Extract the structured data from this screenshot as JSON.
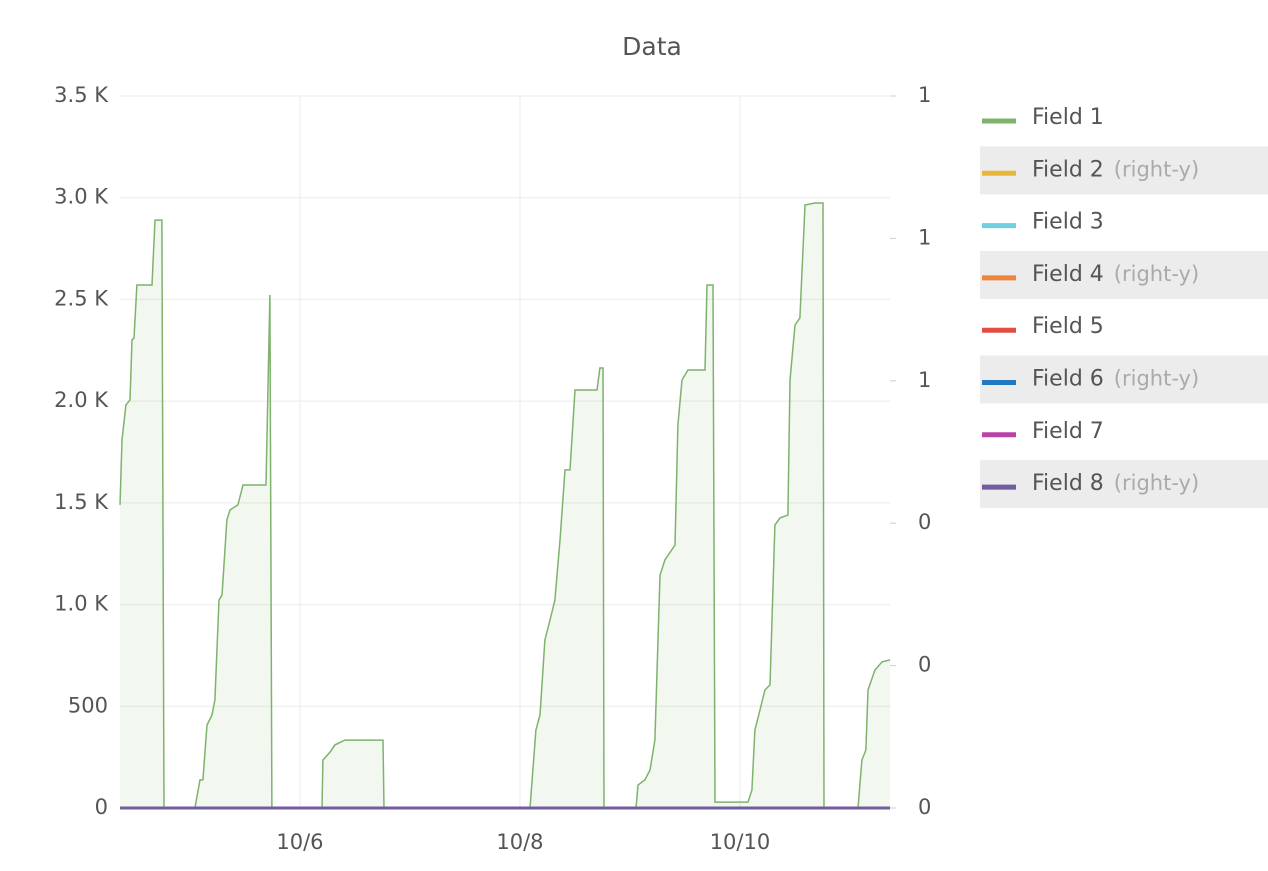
{
  "chart_data": {
    "type": "line",
    "title": "Data",
    "xlim": [
      4.364,
      11.364
    ],
    "xticks": [
      {
        "value": 6,
        "label": "10/6"
      },
      {
        "value": 8,
        "label": "10/8"
      },
      {
        "value": 10,
        "label": "10/10"
      }
    ],
    "ylim": [
      0,
      3500
    ],
    "yticks": [
      0,
      500,
      {
        "value": 1000,
        "label": "1.0 K"
      },
      {
        "value": 1500,
        "label": "1.5 K"
      },
      {
        "value": 2000,
        "label": "2.0 K"
      },
      {
        "value": 2500,
        "label": "2.5 K"
      },
      {
        "value": 3000,
        "label": "3.0 K"
      },
      {
        "value": 3500,
        "label": "3.5 K"
      }
    ],
    "y2lim": [
      0,
      1
    ],
    "y2ticks": [
      0,
      {
        "value": 0.2,
        "label": "0"
      },
      {
        "value": 0.4,
        "label": "0"
      },
      {
        "value": 0.6,
        "label": "1"
      },
      {
        "value": 0.8,
        "label": "1"
      },
      1
    ],
    "grid": true,
    "legend": "right",
    "right_axis_suffix": "(right-y)",
    "series": [
      {
        "name": "Field 1",
        "color": "#7eb26d",
        "fill": true,
        "x": [
          4.364,
          4.382,
          4.418,
          4.455,
          4.473,
          4.491,
          4.518,
          4.655,
          4.682,
          4.745,
          4.764,
          5.045,
          5.091,
          5.118,
          5.155,
          5.2,
          5.227,
          5.264,
          5.291,
          5.336,
          5.364,
          5.436,
          5.482,
          5.691,
          5.727,
          5.745,
          6.2,
          6.209,
          6.273,
          6.318,
          6.409,
          6.755,
          6.764,
          8.091,
          8.145,
          8.182,
          8.227,
          8.273,
          8.318,
          8.364,
          8.409,
          8.455,
          8.5,
          8.7,
          8.727,
          8.755,
          8.764,
          9.055,
          9.073,
          9.136,
          9.182,
          9.227,
          9.273,
          9.318,
          9.409,
          9.436,
          9.473,
          9.527,
          9.682,
          9.7,
          9.755,
          9.773,
          10.073,
          10.109,
          10.136,
          10.182,
          10.227,
          10.273,
          10.318,
          10.364,
          10.436,
          10.455,
          10.5,
          10.545,
          10.591,
          10.682,
          10.755,
          10.764,
          11.073,
          11.109,
          11.145,
          11.164,
          11.227,
          11.291,
          11.364
        ],
        "values": [
          1490,
          1809,
          1981,
          2006,
          2301,
          2310,
          2571,
          2571,
          2890,
          2890,
          0,
          0,
          138,
          138,
          408,
          457,
          531,
          1022,
          1047,
          1416,
          1465,
          1490,
          1588,
          1588,
          2522,
          0,
          0,
          236,
          275,
          310,
          334,
          334,
          0,
          0,
          383,
          457,
          826,
          924,
          1022,
          1317,
          1662,
          1662,
          2055,
          2055,
          2163,
          2163,
          0,
          0,
          113,
          138,
          187,
          334,
          1145,
          1219,
          1293,
          1883,
          2104,
          2153,
          2153,
          2571,
          2571,
          29,
          29,
          88,
          383,
          482,
          580,
          605,
          1391,
          1426,
          1440,
          2104,
          2374,
          2409,
          2964,
          2974,
          2974,
          0,
          0,
          236,
          285,
          580,
          678,
          718,
          728
        ]
      },
      {
        "name": "Field 2",
        "color": "#eab839",
        "axis": "y2",
        "x": [
          4.364,
          11.364
        ],
        "values": [
          0,
          0
        ]
      },
      {
        "name": "Field 3",
        "color": "#6ed0e0",
        "x": [
          4.364,
          11.364
        ],
        "values": [
          0,
          0
        ]
      },
      {
        "name": "Field 4",
        "color": "#ef843c",
        "axis": "y2",
        "x": [
          4.364,
          11.364
        ],
        "values": [
          0,
          0
        ]
      },
      {
        "name": "Field 5",
        "color": "#e24d42",
        "x": [
          4.364,
          11.364
        ],
        "values": [
          0,
          0
        ]
      },
      {
        "name": "Field 6",
        "color": "#1f78c1",
        "axis": "y2",
        "x": [
          4.364,
          11.364
        ],
        "values": [
          0,
          0
        ]
      },
      {
        "name": "Field 7",
        "color": "#ba43a9",
        "x": [
          4.364,
          11.364
        ],
        "values": [
          0,
          0
        ]
      },
      {
        "name": "Field 8",
        "color": "#705da0",
        "axis": "y2",
        "x": [
          4.364,
          11.364
        ],
        "values": [
          0,
          0
        ]
      }
    ]
  }
}
